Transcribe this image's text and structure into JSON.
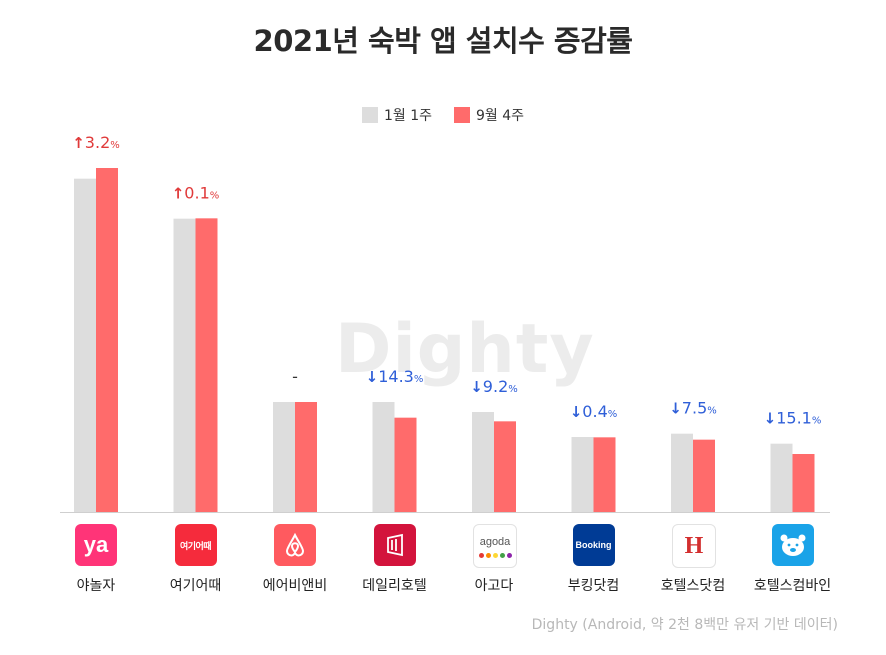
{
  "title": "2021년 숙박 앱 설치수 증감률",
  "colors": {
    "series1": "#dddddd",
    "series2": "#ff6b6b",
    "up": "#e03a3a",
    "down": "#2f5fd8",
    "neutral": "#333333"
  },
  "watermark": "Dighty",
  "footer": "Dighty (Android, 약 2천 8백만 유저 기반 데이터)",
  "chart_data": {
    "type": "bar",
    "title": "2021년 숙박 앱 설치수 증감률",
    "categories": [
      "야놀자",
      "여기어때",
      "에어비앤비",
      "데일리호텔",
      "아고다",
      "부킹닷컴",
      "호텔스닷컴",
      "호텔스컴바인"
    ],
    "series": [
      {
        "name": "1월 1주",
        "values": [
          100,
          88,
          33,
          33,
          30,
          22.5,
          23.5,
          20.5
        ]
      },
      {
        "name": "9월 4주",
        "values": [
          103.2,
          88.1,
          33,
          28.3,
          27.2,
          22.4,
          21.7,
          17.4
        ]
      }
    ],
    "ylim": [
      0,
      105
    ],
    "grid": false,
    "legend": "top-center",
    "annotations": [
      {
        "dir": "up",
        "text": "3.2",
        "unit": "%"
      },
      {
        "dir": "up",
        "text": "0.1",
        "unit": "%"
      },
      {
        "dir": "none",
        "text": "-",
        "unit": ""
      },
      {
        "dir": "down",
        "text": "14.3",
        "unit": "%"
      },
      {
        "dir": "down",
        "text": "9.2",
        "unit": "%"
      },
      {
        "dir": "down",
        "text": "0.4",
        "unit": "%"
      },
      {
        "dir": "down",
        "text": "7.5",
        "unit": "%"
      },
      {
        "dir": "down",
        "text": "15.1",
        "unit": "%"
      }
    ]
  },
  "logos": [
    {
      "name": "yanolja",
      "text": "ya",
      "bg": "#ff3478",
      "fg": "#ffffff"
    },
    {
      "name": "yeogieottae",
      "text": "여기어때",
      "bg": "#f52b3c",
      "fg": "#ffffff"
    },
    {
      "name": "airbnb",
      "text": "",
      "bg": "#ff5a5f",
      "fg": "#ffffff"
    },
    {
      "name": "dailyhotel",
      "text": "",
      "bg": "#d3143c",
      "fg": "#ffffff"
    },
    {
      "name": "agoda",
      "text": "agoda",
      "bg": "#ffffff",
      "fg": "#555555"
    },
    {
      "name": "booking",
      "text": "Booking",
      "bg": "#003b95",
      "fg": "#ffffff"
    },
    {
      "name": "hotels",
      "text": "H",
      "bg": "#ffffff",
      "fg": "#d32f2f"
    },
    {
      "name": "hotelscombined",
      "text": "",
      "bg": "#1aa3e8",
      "fg": "#ffffff"
    }
  ]
}
